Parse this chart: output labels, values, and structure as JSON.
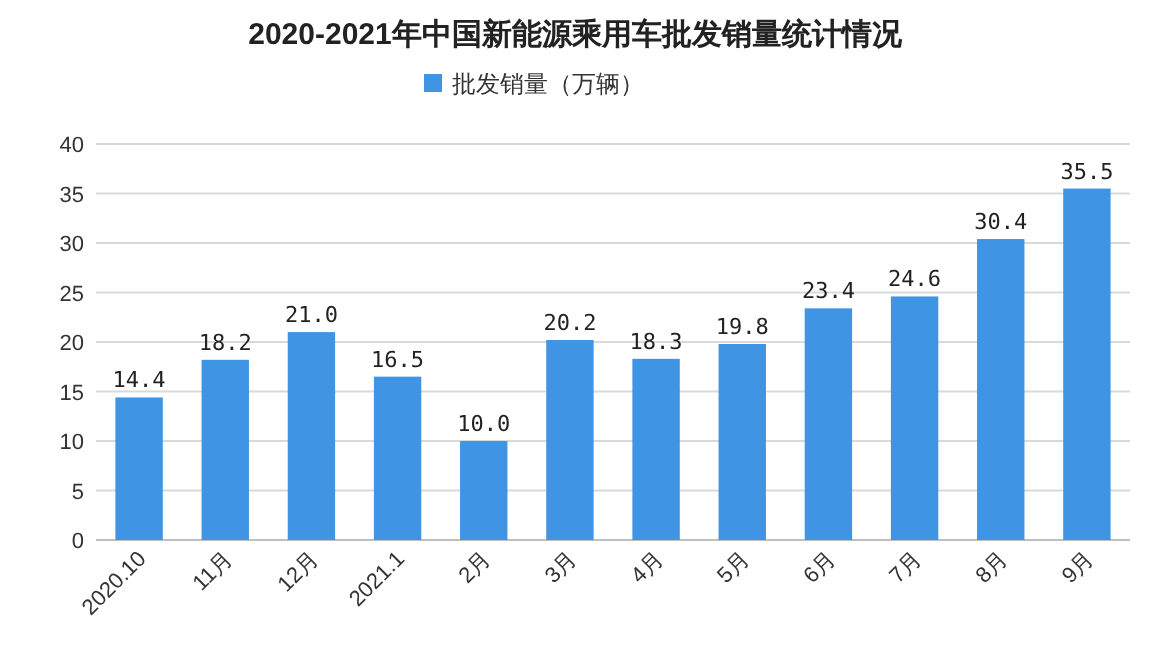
{
  "chart_data": {
    "type": "bar",
    "title": "2020-2021年中国新能源乘用车批发销量统计情况",
    "categories": [
      "2020.10",
      "11月",
      "12月",
      "2021.1",
      "2月",
      "3月",
      "4月",
      "5月",
      "6月",
      "7月",
      "8月",
      "9月"
    ],
    "series": [
      {
        "name": "批发销量（万辆）",
        "color": "#3f94e4",
        "values": [
          14.4,
          18.2,
          21.0,
          16.5,
          10.0,
          20.2,
          18.3,
          19.8,
          23.4,
          24.6,
          30.4,
          35.5
        ],
        "value_labels": [
          "14.4",
          "18.2",
          "21.0",
          "16.5",
          "10.0",
          "20.2",
          "18.3",
          "19.8",
          "23.4",
          "24.6",
          "30.4",
          "35.5"
        ]
      }
    ],
    "ylim": [
      0,
      40
    ],
    "yticks": [
      0,
      5,
      10,
      15,
      20,
      25,
      30,
      35,
      40
    ],
    "grid": "y",
    "legend": "top"
  }
}
